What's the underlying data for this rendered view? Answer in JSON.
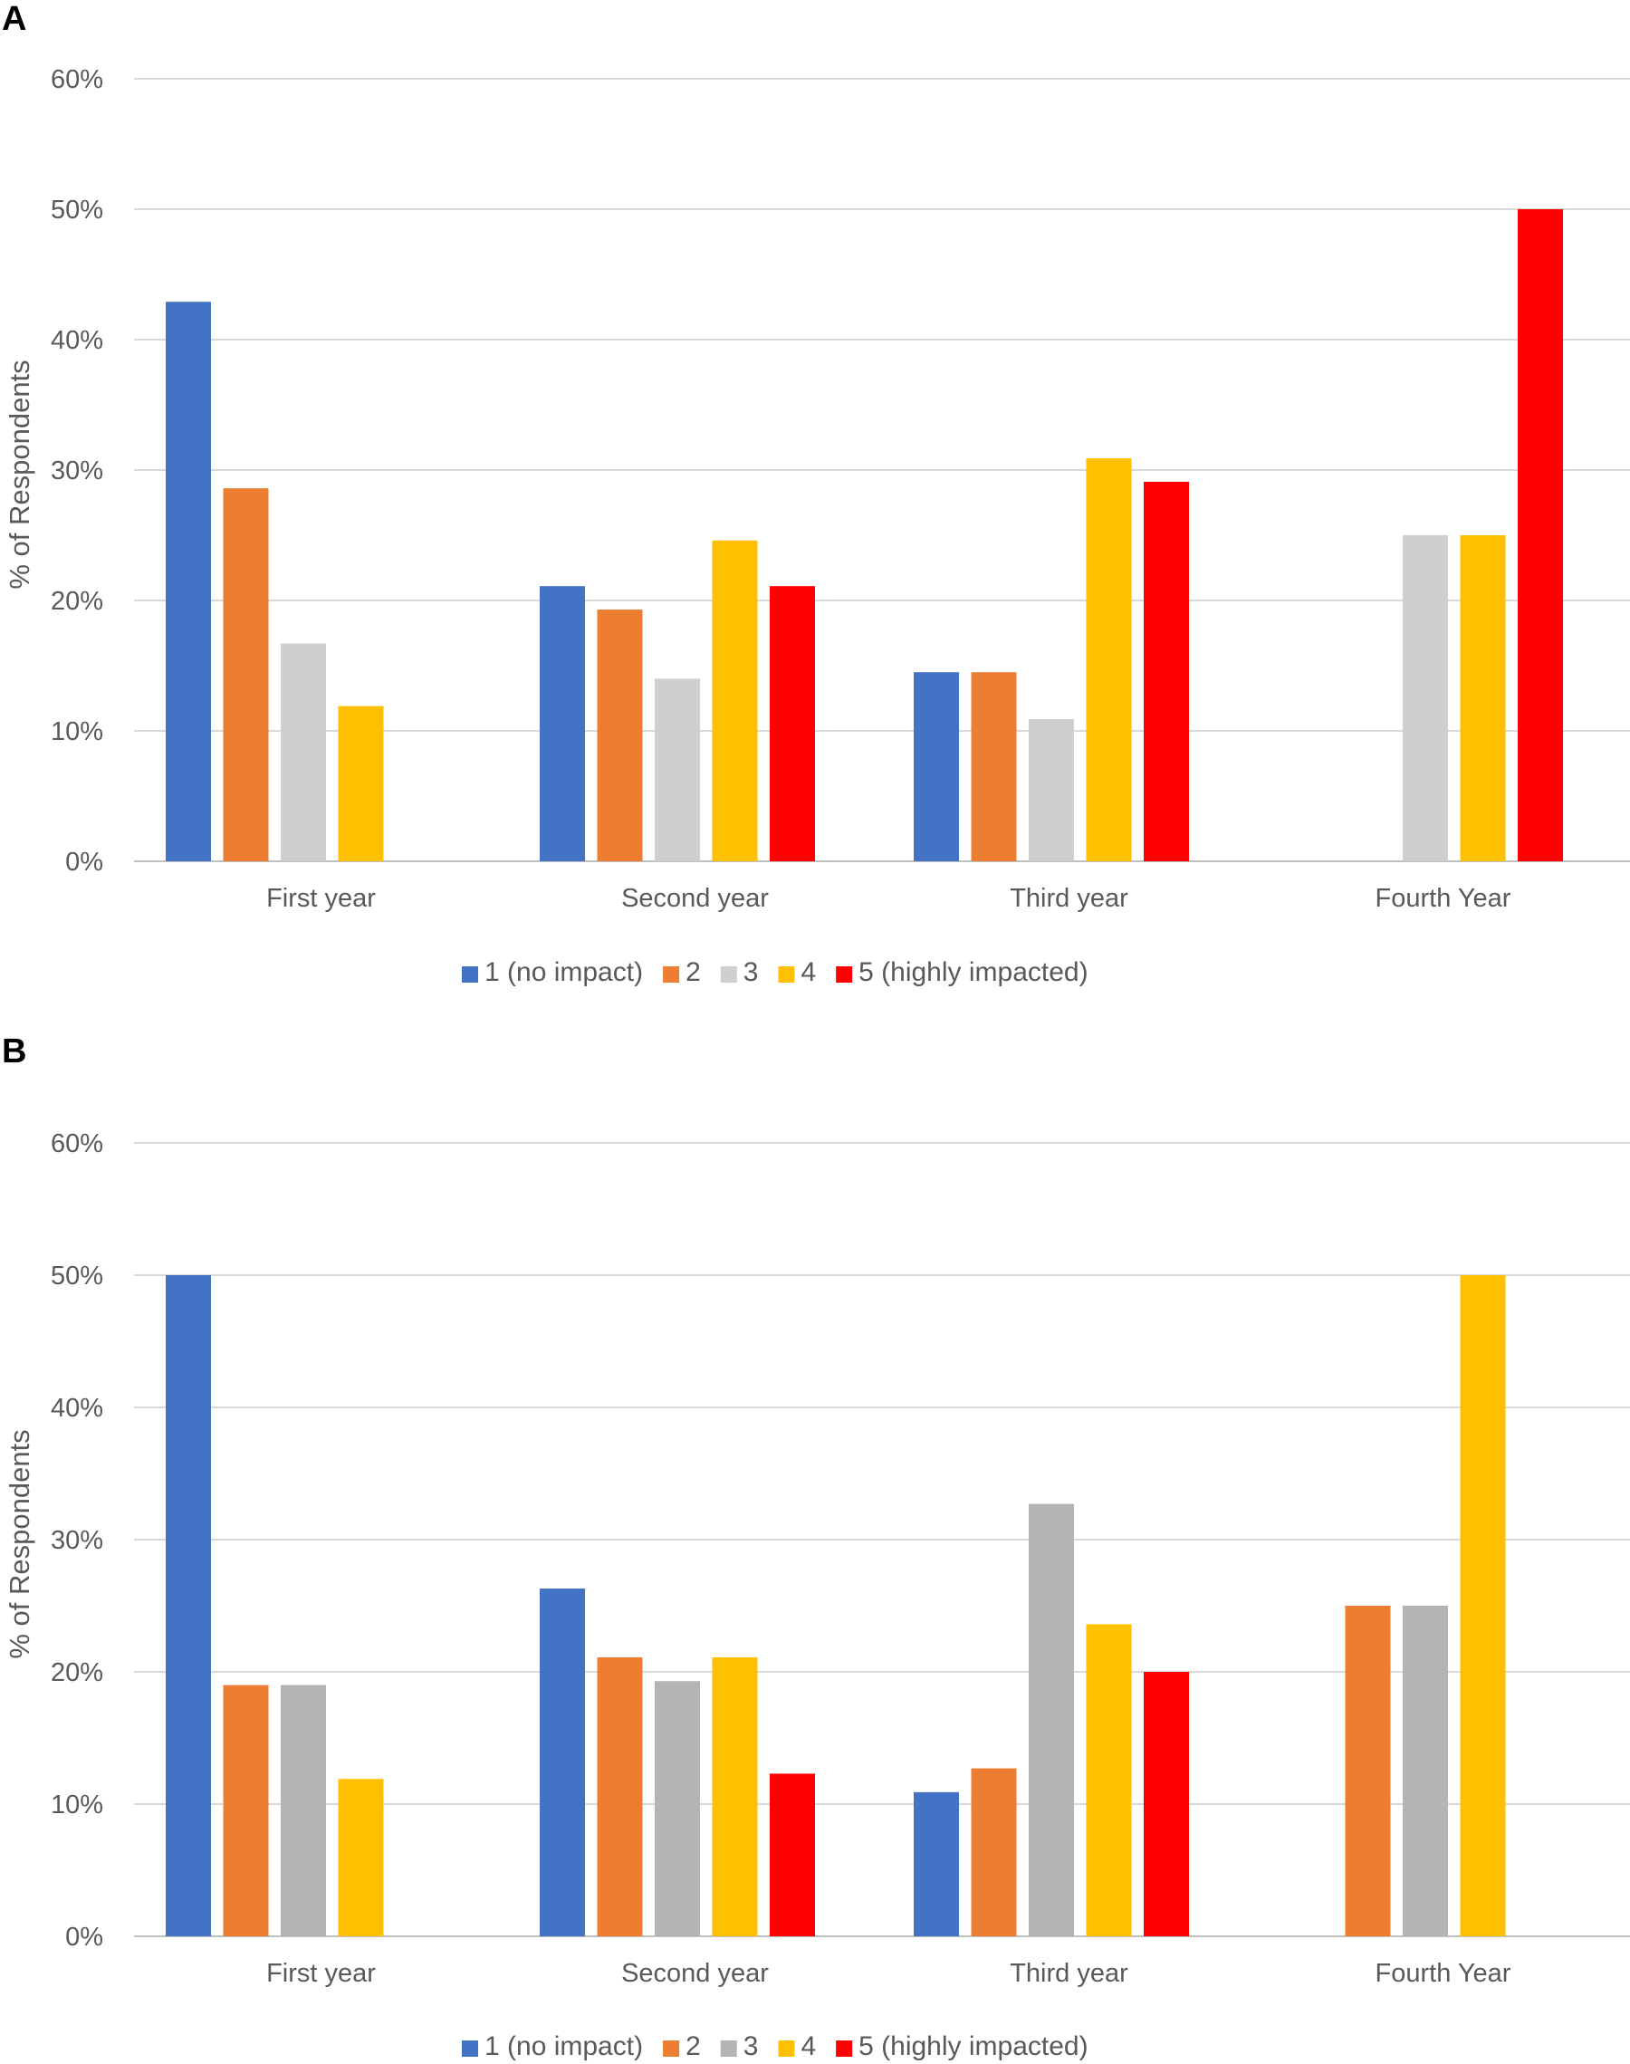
{
  "chart_data": [
    {
      "panel_label": "A",
      "type": "bar",
      "categories": [
        "First year",
        "Second year",
        "Third year",
        "Fourth Year"
      ],
      "ylabel": "% of Respondents",
      "ylim": [
        0,
        60
      ],
      "yticks": [
        "0%",
        "10%",
        "20%",
        "30%",
        "40%",
        "50%",
        "60%"
      ],
      "grid": true,
      "legend_position": "bottom",
      "series": [
        {
          "name": "1 (no impact)",
          "color": "#4472C4",
          "values": [
            42.9,
            21.1,
            14.5,
            0
          ]
        },
        {
          "name": "2",
          "color": "#ED7D31",
          "values": [
            28.6,
            19.3,
            14.5,
            0
          ]
        },
        {
          "name": "3",
          "color": "#CFCFCF",
          "values": [
            16.7,
            14.0,
            10.9,
            25.0
          ]
        },
        {
          "name": "4",
          "color": "#FFC000",
          "values": [
            11.9,
            24.6,
            30.9,
            25.0
          ]
        },
        {
          "name": "5 (highly impacted)",
          "color": "#FF0000",
          "values": [
            0,
            21.1,
            29.1,
            50.0
          ]
        }
      ]
    },
    {
      "panel_label": "B",
      "type": "bar",
      "categories": [
        "First year",
        "Second year",
        "Third year",
        "Fourth Year"
      ],
      "ylabel": "% of Respondents",
      "ylim": [
        0,
        60
      ],
      "yticks": [
        "0%",
        "10%",
        "20%",
        "30%",
        "40%",
        "50%",
        "60%"
      ],
      "grid": true,
      "legend_position": "bottom",
      "series": [
        {
          "name": "1 (no impact)",
          "color": "#4472C4",
          "values": [
            50.0,
            26.3,
            10.9,
            0
          ]
        },
        {
          "name": "2",
          "color": "#ED7D31",
          "values": [
            19.0,
            21.1,
            12.7,
            25.0
          ]
        },
        {
          "name": "3",
          "color": "#B4B4B4",
          "values": [
            19.0,
            19.3,
            32.7,
            25.0
          ]
        },
        {
          "name": "4",
          "color": "#FFC000",
          "values": [
            11.9,
            21.1,
            23.6,
            50.0
          ]
        },
        {
          "name": "5 (highly impacted)",
          "color": "#FF0000",
          "values": [
            0,
            12.3,
            20.0,
            0
          ]
        }
      ]
    }
  ]
}
